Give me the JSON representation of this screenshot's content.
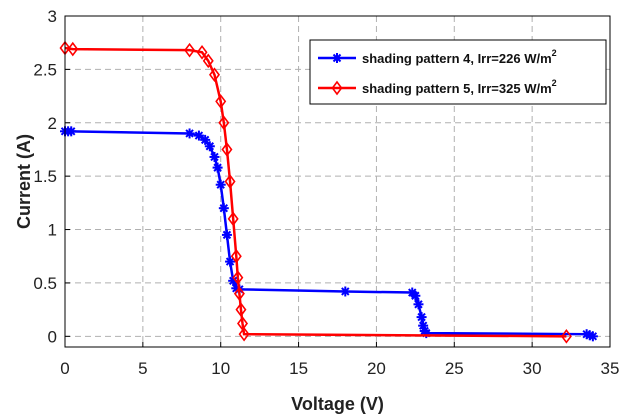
{
  "chart_data": {
    "type": "line",
    "xlabel": "Voltage (V)",
    "ylabel": "Current (A)",
    "xlim": [
      0,
      35
    ],
    "ylim": [
      -0.1,
      3
    ],
    "xticks": [
      0,
      5,
      10,
      15,
      20,
      25,
      30,
      35
    ],
    "yticks": [
      0,
      0.5,
      1,
      1.5,
      2,
      2.5,
      3
    ],
    "xtick_labels": [
      "0",
      "5",
      "10",
      "15",
      "20",
      "25",
      "30",
      "35"
    ],
    "ytick_labels": [
      "0",
      "0.5",
      "1",
      "1.5",
      "2",
      "2.5",
      "3"
    ],
    "grid": true,
    "legend_position": "top-right",
    "series": [
      {
        "name": "shading pattern 4, Irr=226 W/m",
        "name_superscript": "2",
        "color": "#0000ff",
        "marker": "asterisk",
        "x": [
          0,
          0.2,
          0.4,
          8.0,
          8.6,
          9.0,
          9.3,
          9.6,
          9.8,
          10.0,
          10.2,
          10.4,
          10.6,
          10.8,
          11.0,
          11.2,
          18.0,
          22.3,
          22.5,
          22.7,
          22.9,
          23.0,
          23.1,
          23.2,
          33.5,
          33.7,
          33.9
        ],
        "y": [
          1.92,
          1.92,
          1.92,
          1.9,
          1.88,
          1.84,
          1.78,
          1.68,
          1.58,
          1.42,
          1.2,
          0.95,
          0.7,
          0.52,
          0.45,
          0.44,
          0.42,
          0.41,
          0.38,
          0.3,
          0.18,
          0.1,
          0.05,
          0.03,
          0.02,
          0.01,
          0.0
        ]
      },
      {
        "name": "shading pattern 5, Irr=325 W/m",
        "name_superscript": "2",
        "color": "#ff0000",
        "marker": "diamond",
        "x": [
          0,
          0.5,
          8.0,
          8.8,
          9.2,
          9.6,
          10.0,
          10.2,
          10.4,
          10.6,
          10.8,
          11.0,
          11.1,
          11.2,
          11.3,
          11.4,
          11.5,
          32.2
        ],
        "y": [
          2.7,
          2.69,
          2.68,
          2.66,
          2.58,
          2.45,
          2.2,
          2.0,
          1.75,
          1.45,
          1.1,
          0.75,
          0.55,
          0.4,
          0.25,
          0.12,
          0.02,
          0.0
        ]
      }
    ]
  }
}
